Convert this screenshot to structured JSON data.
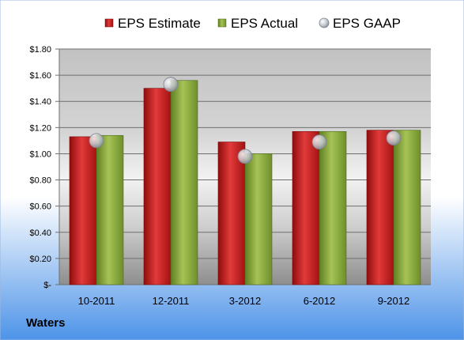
{
  "company": "Waters",
  "chart_data": {
    "type": "bar",
    "categories": [
      "10-2011",
      "12-2011",
      "3-2012",
      "6-2012",
      "9-2012"
    ],
    "series": [
      {
        "name": "EPS Estimate",
        "kind": "bar",
        "color": "#cc1f1f",
        "values": [
          1.13,
          1.5,
          1.09,
          1.17,
          1.18
        ]
      },
      {
        "name": "EPS Actual",
        "kind": "bar",
        "color": "#8fae3c",
        "values": [
          1.14,
          1.56,
          1.0,
          1.17,
          1.18
        ]
      },
      {
        "name": "EPS GAAP",
        "kind": "marker",
        "color": "#b8bcc4",
        "values": [
          1.1,
          1.53,
          0.98,
          1.09,
          1.12
        ]
      }
    ],
    "ylim": [
      0,
      1.8
    ],
    "yticks": [
      {
        "value": 0,
        "label": "$-"
      },
      {
        "value": 0.2,
        "label": "$0.20"
      },
      {
        "value": 0.4,
        "label": "$0.40"
      },
      {
        "value": 0.6,
        "label": "$0.60"
      },
      {
        "value": 0.8,
        "label": "$0.80"
      },
      {
        "value": 1.0,
        "label": "$1.00"
      },
      {
        "value": 1.2,
        "label": "$1.20"
      },
      {
        "value": 1.4,
        "label": "$1.40"
      },
      {
        "value": 1.6,
        "label": "$1.60"
      },
      {
        "value": 1.8,
        "label": "$1.80"
      }
    ],
    "grid": true,
    "legend": "top"
  }
}
